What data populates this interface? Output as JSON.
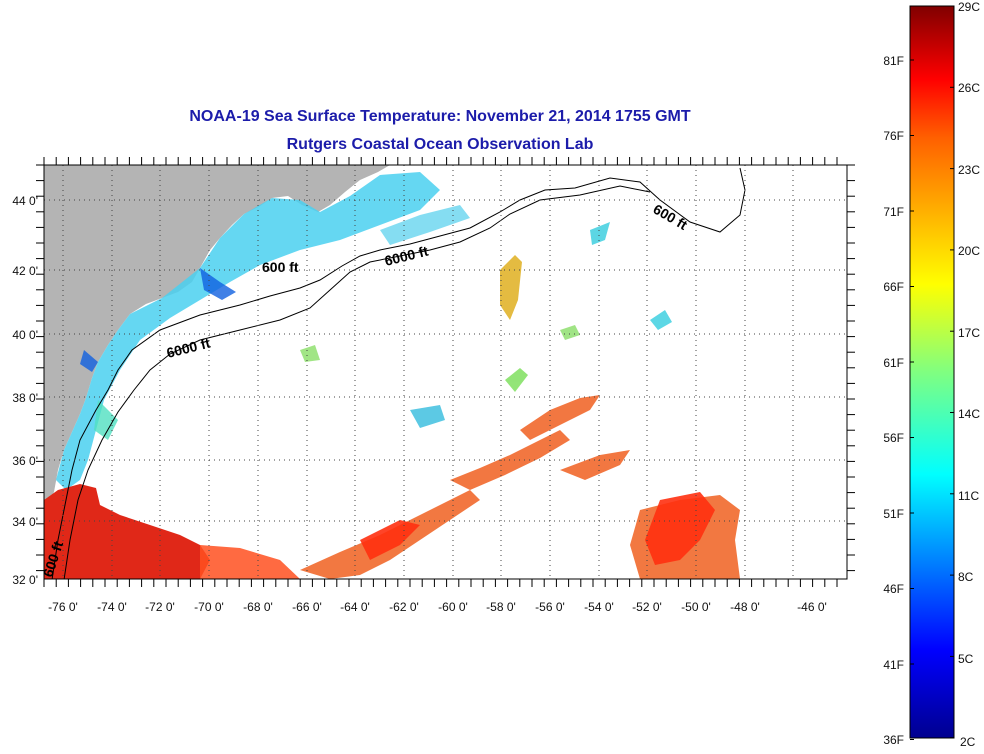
{
  "title": "NOAA-19 Sea Surface Temperature:  November 21, 2014 1755 GMT",
  "subtitle": "Rutgers Coastal Ocean Observation Lab",
  "lon_labels": [
    "-76 0'",
    "-74 0'",
    "-72 0'",
    "-70 0'",
    "-68 0'",
    "-66 0'",
    "-64 0'",
    "-62 0'",
    "-60 0'",
    "-58 0'",
    "-56 0'",
    "-54 0'",
    "-52 0'",
    "-50 0'",
    "-48 0'",
    "-46 0'"
  ],
  "lat_labels": [
    "44 0'",
    "42 0'",
    "40 0'",
    "38 0'",
    "36 0'",
    "34 0'",
    "32 0'"
  ],
  "contour_labels": [
    "600 ft",
    "6000 ft",
    "6000 ft",
    "600 ft",
    "600 ft"
  ],
  "colorbar": {
    "celsius": [
      "29C",
      "26C",
      "23C",
      "20C",
      "17C",
      "14C",
      "11C",
      "8C",
      "5C",
      "2C"
    ],
    "fahrenheit": [
      "81F",
      "76F",
      "71F",
      "66F",
      "61F",
      "56F",
      "51F",
      "46F",
      "41F",
      "36F"
    ],
    "colors": [
      "#00008f",
      "#0000ff",
      "#0080ff",
      "#00ffff",
      "#80ff80",
      "#ffff00",
      "#ff8000",
      "#ff0000",
      "#800000"
    ]
  },
  "colors": {
    "land": "#b4b4b4",
    "title": "#1c1caa"
  }
}
